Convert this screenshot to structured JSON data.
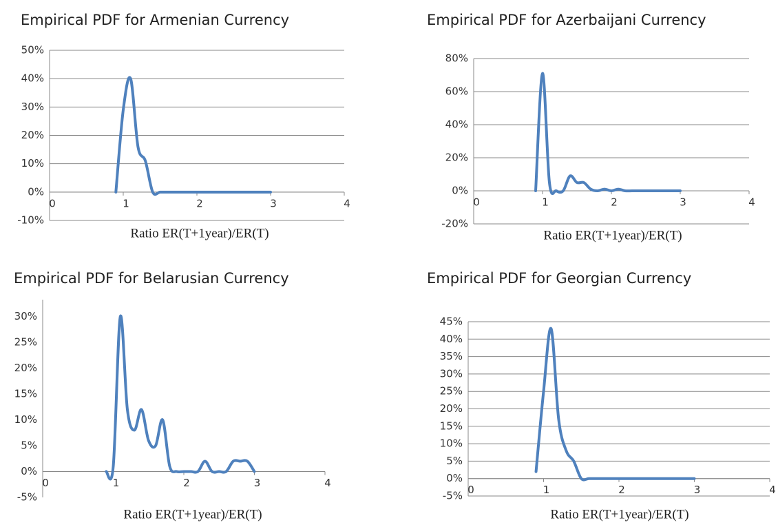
{
  "chart_data": [
    {
      "type": "line",
      "title": "Empirical PDF for Armenian Currency",
      "x_label": "Ratio ER(T+1year)/ER(T)",
      "x": [
        0.9,
        1.0,
        1.1,
        1.2,
        1.3,
        1.4,
        1.5,
        1.6,
        1.7,
        1.8,
        1.9,
        2.0,
        2.1,
        2.2,
        2.3,
        2.4,
        2.5,
        2.6,
        2.7,
        2.8,
        2.9,
        3.0
      ],
      "series": [
        {
          "color": "#4f81bd",
          "values": [
            0,
            29,
            40,
            16,
            11,
            0,
            0,
            0,
            0,
            0,
            0,
            0,
            0,
            0,
            0,
            0,
            0,
            0,
            0,
            0,
            0,
            0
          ]
        }
      ],
      "xlim": [
        0,
        4
      ],
      "xticks": [
        0,
        1,
        2,
        3,
        4
      ],
      "ylim": [
        -10,
        50
      ],
      "yticks": [
        {
          "value": -10,
          "label": "-10%"
        },
        {
          "value": 0,
          "label": "0%"
        },
        {
          "value": 10,
          "label": "10%"
        },
        {
          "value": 20,
          "label": "20%"
        },
        {
          "value": 30,
          "label": "30%"
        },
        {
          "value": 40,
          "label": "40%"
        },
        {
          "value": 50,
          "label": "50%"
        }
      ],
      "grid": true
    },
    {
      "type": "line",
      "title": "Empirical PDF for Azerbaijani Currency",
      "x_label": "Ratio ER(T+1year)/ER(T)",
      "x": [
        0.9,
        1.0,
        1.1,
        1.2,
        1.3,
        1.4,
        1.5,
        1.6,
        1.7,
        1.8,
        1.9,
        2.0,
        2.1,
        2.2,
        2.3,
        2.4,
        2.5,
        2.6,
        2.7,
        2.8,
        2.9,
        3.0
      ],
      "series": [
        {
          "color": "#4f81bd",
          "values": [
            0,
            71,
            5,
            0,
            0,
            9,
            5,
            5,
            1,
            0,
            1,
            0,
            1,
            0,
            0,
            0,
            0,
            0,
            0,
            0,
            0,
            0
          ]
        }
      ],
      "xlim": [
        0,
        4
      ],
      "xticks": [
        0,
        1,
        2,
        3,
        4
      ],
      "ylim": [
        -20,
        80
      ],
      "yticks": [
        {
          "value": -20,
          "label": "-20%"
        },
        {
          "value": 0,
          "label": "0%"
        },
        {
          "value": 20,
          "label": "20%"
        },
        {
          "value": 40,
          "label": "40%"
        },
        {
          "value": 60,
          "label": "60%"
        },
        {
          "value": 80,
          "label": "80%"
        }
      ],
      "grid": true
    },
    {
      "type": "line",
      "title": "Empirical PDF for Belarusian Currency",
      "x_label": "Ratio ER(T+1year)/ER(T)",
      "x": [
        0.9,
        1.0,
        1.1,
        1.2,
        1.3,
        1.4,
        1.5,
        1.6,
        1.7,
        1.8,
        1.9,
        2.0,
        2.1,
        2.2,
        2.3,
        2.4,
        2.5,
        2.6,
        2.7,
        2.8,
        2.9,
        3.0
      ],
      "series": [
        {
          "color": "#4f81bd",
          "values": [
            0,
            1,
            30,
            12,
            8,
            12,
            6,
            5,
            10,
            1,
            0,
            0,
            0,
            0,
            2,
            0,
            0,
            0,
            2,
            2,
            2,
            0
          ]
        }
      ],
      "xlim": [
        0,
        4
      ],
      "xticks": [
        0,
        1,
        2,
        3,
        4
      ],
      "ylim": [
        -5,
        33
      ],
      "yticks": [
        {
          "value": -5,
          "label": "-5%"
        },
        {
          "value": 0,
          "label": "0%"
        },
        {
          "value": 5,
          "label": "5%"
        },
        {
          "value": 10,
          "label": "10%"
        },
        {
          "value": 15,
          "label": "15%"
        },
        {
          "value": 20,
          "label": "20%"
        },
        {
          "value": 25,
          "label": "25%"
        },
        {
          "value": 30,
          "label": "30%"
        }
      ],
      "grid": false
    },
    {
      "type": "line",
      "title": "Empirical PDF for Georgian Currency",
      "x_label": "Ratio ER(T+1year)/ER(T)",
      "x": [
        0.9,
        1.0,
        1.1,
        1.2,
        1.3,
        1.4,
        1.5,
        1.6,
        1.7,
        1.8,
        1.9,
        2.0,
        2.1,
        2.2,
        2.3,
        2.4,
        2.5,
        2.6,
        2.7,
        2.8,
        2.9,
        3.0
      ],
      "series": [
        {
          "color": "#4f81bd",
          "values": [
            2,
            25,
            43,
            17,
            8,
            5,
            0,
            0,
            0,
            0,
            0,
            0,
            0,
            0,
            0,
            0,
            0,
            0,
            0,
            0,
            0,
            0
          ]
        }
      ],
      "xlim": [
        0,
        4
      ],
      "xticks": [
        0,
        1,
        2,
        3,
        4
      ],
      "ylim": [
        -5,
        45
      ],
      "yticks": [
        {
          "value": -5,
          "label": "-5%"
        },
        {
          "value": 0,
          "label": "0%"
        },
        {
          "value": 5,
          "label": "5%"
        },
        {
          "value": 10,
          "label": "10%"
        },
        {
          "value": 15,
          "label": "15%"
        },
        {
          "value": 20,
          "label": "20%"
        },
        {
          "value": 25,
          "label": "25%"
        },
        {
          "value": 30,
          "label": "30%"
        },
        {
          "value": 35,
          "label": "35%"
        },
        {
          "value": 40,
          "label": "40%"
        },
        {
          "value": 45,
          "label": "45%"
        }
      ],
      "grid": true
    }
  ]
}
